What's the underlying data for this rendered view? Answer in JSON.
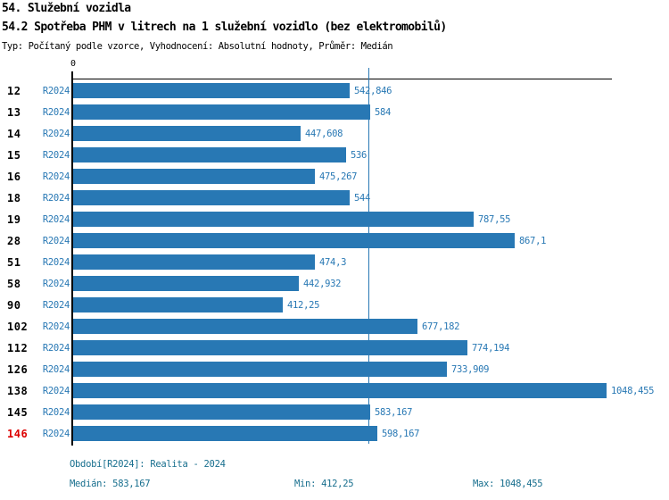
{
  "header": {
    "title_line1": "54. Služební vozidla",
    "title_line2": "54.2 Spotřeba PHM v litrech na 1 služební vozidlo (bez elektromobilů)",
    "subtitle": "Typ: Počítaný podle vzorce, Vyhodnocení: Absolutní hodnoty, Průměr: Medián"
  },
  "chart_data": {
    "type": "bar",
    "orientation": "horizontal",
    "title": "54.2 Spotřeba PHM v litrech na 1 služební vozidlo (bez elektromobilů)",
    "axis_origin_label": "0",
    "series_label": "R2024",
    "categories": [
      "12",
      "13",
      "14",
      "15",
      "16",
      "18",
      "19",
      "28",
      "51",
      "58",
      "90",
      "102",
      "112",
      "126",
      "138",
      "145",
      "146"
    ],
    "values": [
      542.846,
      584,
      447.608,
      536,
      475.267,
      544,
      787.55,
      867.1,
      474.3,
      442.932,
      412.25,
      677.182,
      774.194,
      733.909,
      1048.455,
      583.167,
      598.167
    ],
    "value_labels": [
      "542,846",
      "584",
      "447,608",
      "536",
      "475,267",
      "544",
      "787,55",
      "867,1",
      "474,3",
      "442,932",
      "412,25",
      "677,182",
      "774,194",
      "733,909",
      "1048,455",
      "583,167",
      "598,167"
    ],
    "highlighted_category": "146",
    "median_value": 583.167,
    "min_value": 412.25,
    "max_value": 1048.455,
    "xlim": [
      0,
      1060
    ],
    "grid": false,
    "legend_position": "none",
    "bar_color": "#2878b4",
    "label_color": "#2878b4",
    "highlight_color": "#dd0000",
    "median_line_color": "#2878b4"
  },
  "footer": {
    "period": "Období[R2024]: Realita - 2024",
    "median": "Medián: 583,167",
    "min": "Min: 412,25",
    "max": "Max: 1048,455"
  },
  "footer_color": "#186f8e"
}
